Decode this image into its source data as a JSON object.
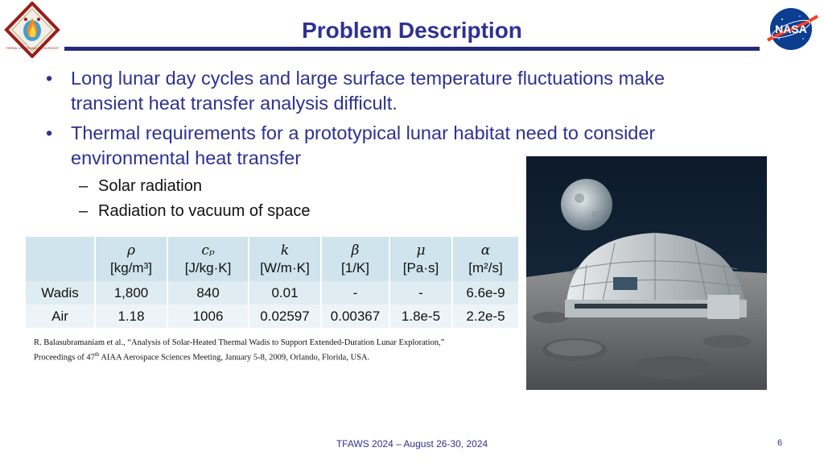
{
  "header": {
    "title": "Problem Description",
    "left_logo_text": "THERMAL & FLUIDS ANALYSIS WORKSHOP",
    "right_logo_text": "NASA"
  },
  "bullets": [
    {
      "text": "Long lunar day cycles and large surface temperature fluctuations make transient heat transfer analysis difficult."
    },
    {
      "text": "Thermal requirements for a prototypical lunar habitat need to consider environmental heat transfer",
      "sub": [
        "Solar radiation",
        "Radiation to vacuum of space"
      ]
    }
  ],
  "table": {
    "headers": [
      {
        "symbol": "",
        "unit": ""
      },
      {
        "symbol": "ρ",
        "unit": "[kg/m³]"
      },
      {
        "symbol": "cₚ",
        "unit": "[J/kg·K]"
      },
      {
        "symbol": "k",
        "unit": "[W/m·K]"
      },
      {
        "symbol": "β",
        "unit": "[1/K]"
      },
      {
        "symbol": "μ",
        "unit": "[Pa·s]"
      },
      {
        "symbol": "α",
        "unit": "[m²/s]"
      }
    ],
    "rows": [
      [
        "Wadis",
        "1,800",
        "840",
        "0.01",
        "-",
        "-",
        "6.6e-9"
      ],
      [
        "Air",
        "1.18",
        "1006",
        "0.02597",
        "0.00367",
        "1.8e-5",
        "2.2e-5"
      ]
    ]
  },
  "reference": {
    "line1": "R. Balasubramaniam et al., “Analysis of Solar-Heated Thermal Wadis to Support Extended-Duration Lunar Exploration,”",
    "line2_pre": "Proceedings of 47",
    "line2_sup": "th",
    "line2_post": " AIAA Aerospace Sciences Meeting, January 5-8, 2009, Orlando, Florida, USA."
  },
  "footer": {
    "text": "TFAWS 2024 – August 26-30, 2024",
    "page_number": "6"
  }
}
